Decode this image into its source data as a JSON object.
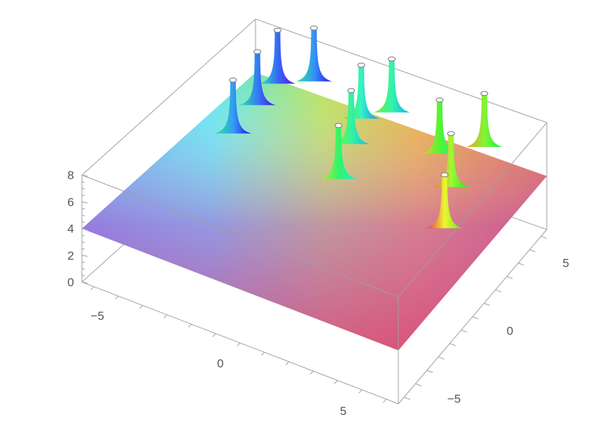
{
  "chart_data": {
    "type": "surface3d",
    "x_ticks": [
      {
        "value": -5,
        "label": "−5"
      },
      {
        "value": 0,
        "label": "0"
      },
      {
        "value": 5,
        "label": "5"
      }
    ],
    "y_ticks": [
      {
        "value": -5,
        "label": "−5"
      },
      {
        "value": 0,
        "label": "0"
      },
      {
        "value": 5,
        "label": "5"
      }
    ],
    "z_ticks": [
      {
        "value": 0,
        "label": "0"
      },
      {
        "value": 2,
        "label": "2"
      },
      {
        "value": 4,
        "label": "4"
      },
      {
        "value": 6,
        "label": "6"
      },
      {
        "value": 8,
        "label": "8"
      }
    ],
    "x_range": [
      -6.5,
      6.5
    ],
    "y_range": [
      -6.5,
      6.5
    ],
    "z_range": [
      0,
      8
    ],
    "base_level": 4,
    "coloring": "argument hue (phase)",
    "peaks": [
      {
        "x": -5.1,
        "y": 2.4
      },
      {
        "x": -0.3,
        "y": 2.0
      },
      {
        "x": 4.6,
        "y": 1.4
      },
      {
        "x": -5.3,
        "y": 4.6
      },
      {
        "x": -1.0,
        "y": 4.3
      },
      {
        "x": 3.6,
        "y": 3.9
      },
      {
        "x": -5.4,
        "y": 6.3
      },
      {
        "x": -1.5,
        "y": 6.0
      },
      {
        "x": 2.2,
        "y": 5.6
      },
      {
        "x": -4.3,
        "y": 7.2
      },
      {
        "x": -0.7,
        "y": 7.0
      },
      {
        "x": 3.5,
        "y": 6.9
      }
    ]
  }
}
